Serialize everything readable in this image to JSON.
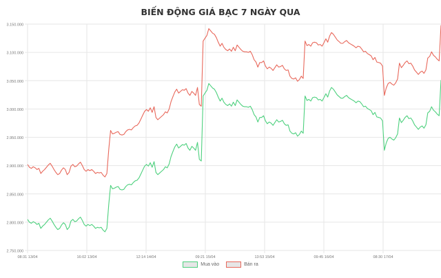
{
  "title": "BIẾN ĐỘNG GIÁ BẠC 7 NGÀY QUA",
  "legend": [
    {
      "label": "Mua vào",
      "color": "#4cd07d"
    },
    {
      "label": "Bán ra",
      "color": "#e8675a"
    }
  ],
  "chart_data": {
    "type": "line",
    "title": "BIẾN ĐỘNG GIÁ BẠC 7 NGÀY QUA",
    "xlabel": "",
    "ylabel": "",
    "ylim": [
      2750000,
      3150000
    ],
    "yticks": [
      "2.750.000",
      "2.800.000",
      "2.850.000",
      "2.900.000",
      "2.950.000",
      "3.000.000",
      "3.050.000",
      "3.100.000",
      "3.150.000"
    ],
    "ytick_values": [
      2750000,
      2800000,
      2850000,
      2900000,
      2950000,
      3000000,
      3050000,
      3100000,
      3150000
    ],
    "xticks": [
      "08:31 13/04",
      "16:02 13/04",
      "12:14 14/04",
      "09:21 15/04",
      "13:53 15/04",
      "09:45 16/04",
      "08:30 17/04"
    ],
    "grid": true,
    "legend_position": "bottom",
    "series": [
      {
        "name": "Bán ra",
        "color": "#e8675a",
        "values": [
          2902000,
          2897000,
          2895000,
          2898000,
          2896000,
          2893000,
          2895000,
          2886000,
          2890000,
          2893000,
          2897000,
          2901000,
          2904000,
          2899000,
          2893000,
          2888000,
          2884000,
          2886000,
          2892000,
          2896000,
          2893000,
          2884000,
          2888000,
          2899000,
          2902000,
          2898000,
          2899000,
          2903000,
          2906000,
          2900000,
          2893000,
          2890000,
          2893000,
          2891000,
          2893000,
          2890000,
          2886000,
          2888000,
          2887000,
          2888000,
          2883000,
          2880000,
          2886000,
          2928000,
          2962000,
          2956000,
          2957000,
          2959000,
          2960000,
          2955000,
          2954000,
          2955000,
          2960000,
          2963000,
          2964000,
          2963000,
          2967000,
          2970000,
          2971000,
          2975000,
          2982000,
          2989000,
          2996000,
          2999000,
          2996000,
          3002000,
          2994000,
          3004000,
          2985000,
          2981000,
          2984000,
          2987000,
          2990000,
          2995000,
          2993000,
          3000000,
          3013000,
          3022000,
          3030000,
          3035000,
          3028000,
          3031000,
          3034000,
          3033000,
          3036000,
          3028000,
          3024000,
          3031000,
          3028000,
          3024000,
          3038000,
          3008000,
          3005000,
          3120000,
          3125000,
          3130000,
          3142000,
          3138000,
          3134000,
          3132000,
          3126000,
          3118000,
          3111000,
          3116000,
          3109000,
          3105000,
          3103000,
          3106000,
          3102000,
          3109000,
          3103000,
          3113000,
          3109000,
          3105000,
          3102000,
          3101000,
          3101000,
          3100000,
          3102000,
          3096000,
          3087000,
          3083000,
          3074000,
          3082000,
          3082000,
          3085000,
          3076000,
          3071000,
          3074000,
          3072000,
          3068000,
          3073000,
          3078000,
          3074000,
          3075000,
          3077000,
          3071000,
          3068000,
          3069000,
          3058000,
          3054000,
          3053000,
          3055000,
          3049000,
          3052000,
          3058000,
          3054000,
          3120000,
          3112000,
          3114000,
          3111000,
          3117000,
          3118000,
          3117000,
          3113000,
          3114000,
          3111000,
          3117000,
          3124000,
          3118000,
          3129000,
          3135000,
          3132000,
          3127000,
          3122000,
          3119000,
          3116000,
          3116000,
          3119000,
          3121000,
          3117000,
          3115000,
          3113000,
          3111000,
          3108000,
          3111000,
          3110000,
          3106000,
          3101000,
          3102000,
          3098000,
          3096000,
          3094000,
          3087000,
          3091000,
          3083000,
          3082000,
          3081000,
          3076000,
          3024000,
          3037000,
          3045000,
          3047000,
          3044000,
          3042000,
          3046000,
          3053000,
          3081000,
          3073000,
          3077000,
          3082000,
          3085000,
          3080000,
          3081000,
          3076000,
          3069000,
          3065000,
          3061000,
          3065000,
          3067000,
          3063000,
          3069000,
          3090000,
          3093000,
          3101000,
          3095000,
          3092000,
          3088000,
          3085000,
          3148000
        ]
      },
      {
        "name": "Mua vào",
        "color": "#4cd07d",
        "values": [
          2805000,
          2800000,
          2798000,
          2801000,
          2799000,
          2796000,
          2798000,
          2789000,
          2793000,
          2796000,
          2800000,
          2804000,
          2807000,
          2802000,
          2796000,
          2791000,
          2787000,
          2789000,
          2795000,
          2799000,
          2796000,
          2787000,
          2791000,
          2802000,
          2805000,
          2801000,
          2802000,
          2806000,
          2809000,
          2803000,
          2796000,
          2793000,
          2796000,
          2794000,
          2796000,
          2793000,
          2789000,
          2791000,
          2790000,
          2791000,
          2786000,
          2783000,
          2789000,
          2831000,
          2865000,
          2859000,
          2860000,
          2862000,
          2863000,
          2858000,
          2857000,
          2858000,
          2863000,
          2866000,
          2867000,
          2866000,
          2870000,
          2873000,
          2874000,
          2878000,
          2885000,
          2892000,
          2899000,
          2902000,
          2899000,
          2905000,
          2897000,
          2907000,
          2888000,
          2884000,
          2887000,
          2890000,
          2893000,
          2898000,
          2896000,
          2903000,
          2916000,
          2925000,
          2933000,
          2938000,
          2931000,
          2934000,
          2937000,
          2936000,
          2939000,
          2931000,
          2927000,
          2934000,
          2931000,
          2927000,
          2941000,
          2911000,
          2908000,
          3023000,
          3028000,
          3033000,
          3045000,
          3041000,
          3037000,
          3035000,
          3029000,
          3021000,
          3014000,
          3019000,
          3012000,
          3008000,
          3006000,
          3009000,
          3005000,
          3012000,
          3006000,
          3016000,
          3012000,
          3008000,
          3005000,
          3004000,
          3004000,
          3003000,
          3005000,
          2999000,
          2990000,
          2986000,
          2977000,
          2985000,
          2985000,
          2988000,
          2979000,
          2974000,
          2977000,
          2975000,
          2971000,
          2976000,
          2981000,
          2977000,
          2978000,
          2980000,
          2974000,
          2971000,
          2972000,
          2961000,
          2957000,
          2956000,
          2958000,
          2952000,
          2955000,
          2961000,
          2957000,
          3023000,
          3015000,
          3017000,
          3014000,
          3020000,
          3021000,
          3020000,
          3016000,
          3017000,
          3014000,
          3020000,
          3027000,
          3021000,
          3032000,
          3038000,
          3035000,
          3030000,
          3025000,
          3022000,
          3019000,
          3019000,
          3022000,
          3024000,
          3020000,
          3018000,
          3016000,
          3014000,
          3011000,
          3014000,
          3013000,
          3009000,
          3004000,
          3005000,
          3001000,
          2999000,
          2997000,
          2990000,
          2994000,
          2986000,
          2985000,
          2984000,
          2979000,
          2927000,
          2940000,
          2948000,
          2950000,
          2947000,
          2945000,
          2949000,
          2956000,
          2984000,
          2976000,
          2980000,
          2985000,
          2988000,
          2983000,
          2984000,
          2979000,
          2972000,
          2968000,
          2964000,
          2968000,
          2970000,
          2966000,
          2972000,
          2993000,
          2996000,
          3004000,
          2998000,
          2995000,
          2991000,
          2988000,
          3051000
        ]
      }
    ]
  }
}
